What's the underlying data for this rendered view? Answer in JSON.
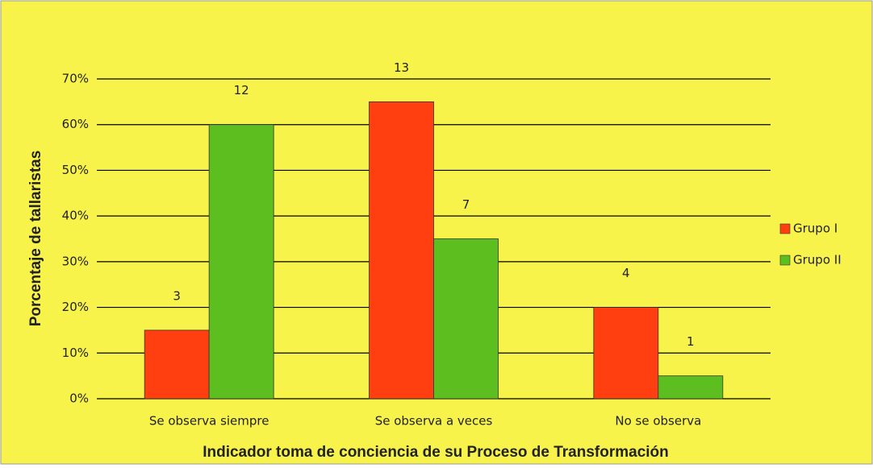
{
  "chart_data": {
    "type": "bar",
    "x_label": "Indicador toma de conciencia de su Proceso de Transformación",
    "y_label": "Porcentaje de tallaristas",
    "categories": [
      "Se observa siempre",
      "Se observa a veces",
      "No se observa"
    ],
    "series": [
      {
        "name": "Grupo I",
        "color": "#ff3f0f",
        "values": [
          15,
          65,
          20
        ],
        "counts": [
          3,
          13,
          4
        ]
      },
      {
        "name": "Grupo II",
        "color": "#5cbf1f",
        "values": [
          60,
          35,
          5
        ],
        "counts": [
          12,
          7,
          1
        ]
      }
    ],
    "ylim": [
      0,
      70
    ],
    "yticks": [
      {
        "value": 0,
        "label": "0%"
      },
      {
        "value": 10,
        "label": "10%"
      },
      {
        "value": 20,
        "label": "20%"
      },
      {
        "value": 30,
        "label": "30%"
      },
      {
        "value": 40,
        "label": "40%"
      },
      {
        "value": 50,
        "label": "50%"
      },
      {
        "value": 60,
        "label": "60%"
      },
      {
        "value": 70,
        "label": "70%"
      }
    ],
    "grid": true,
    "legend": "right"
  }
}
